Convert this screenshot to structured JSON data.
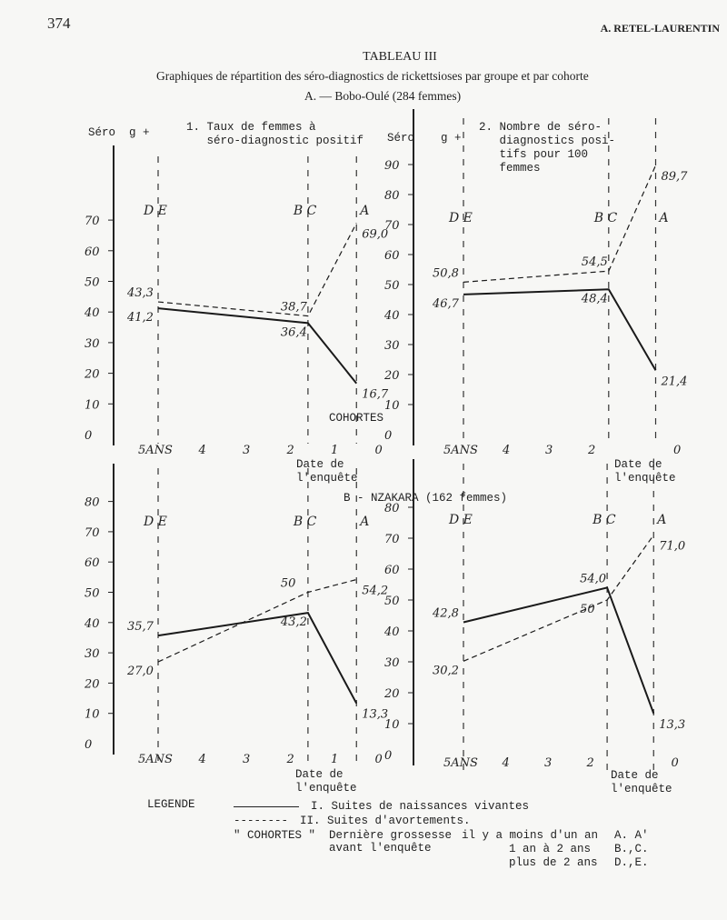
{
  "header": {
    "page_number": "374",
    "author": "A. RETEL-LAURENTIN"
  },
  "title": "TABLEAU III",
  "subtitle": "Graphiques de répartition des séro-diagnostics de rickettsioses par groupe et par cohorte",
  "section_a": "A. — Bobo-Oulé (284 femmes)",
  "section_b": "B - NZAKARA (162 femmes)",
  "y_heading_left": "Séro  g +",
  "y_heading_right_1": "Séro",
  "y_heading_right_2": "g +",
  "chart1_title": "1. Taux de femmes à\n   séro-diagnostic positif",
  "chart2_title": "2. Nombre de séro-\n   diagnostics posi-\n   tifs pour 100\n   femmes",
  "cohortes_label": "COHORTES",
  "date_label": "Date de\nl'enquête",
  "legend": {
    "title": "LEGENDE",
    "solid_label": "I. Suites de naissances vivantes",
    "dashed_sample": "--------",
    "dashed_label": "II. Suites d'avortements.",
    "cohortes": "\" COHORTES \"",
    "desc": "Dernière grossesse\navant l'enquête",
    "periods": [
      "il y a moins d'un an",
      "1 an à 2 ans",
      "plus de 2 ans"
    ],
    "codes": [
      "A. A'",
      "B.,C.",
      "D.,E."
    ]
  },
  "chart_data": [
    {
      "type": "line",
      "title": "Taux de femmes à séro-diagnostic positif (Bobo-Oulé)",
      "ylim": [
        0,
        70
      ],
      "yticks": [
        0,
        10,
        20,
        30,
        40,
        50,
        60,
        70
      ],
      "xticks": [
        "5ANS",
        "4",
        "3",
        "2",
        "1",
        "0"
      ],
      "xtick_values": [
        5,
        4,
        3,
        2,
        1,
        0
      ],
      "cohorts": [
        {
          "label": "D E",
          "x": 5
        },
        {
          "label": "B C",
          "x": 1.6
        },
        {
          "label": "A",
          "x": 0.5
        }
      ],
      "series": [
        {
          "name": "I. Suites de naissances vivantes",
          "style": "solid",
          "x": [
            5,
            1.6,
            0.5
          ],
          "values": [
            41.2,
            36.4,
            16.7
          ],
          "labels": [
            "41,2",
            "36,4",
            "16,7"
          ]
        },
        {
          "name": "II. Suites d'avortements",
          "style": "dashed",
          "x": [
            5,
            1.6,
            0.5
          ],
          "values": [
            43.3,
            38.7,
            69.0
          ],
          "labels": [
            "43,3",
            "38,7",
            "69,0"
          ]
        }
      ]
    },
    {
      "type": "line",
      "title": "Nombre de séro-diagnostics positifs pour 100 femmes (Bobo-Oulé)",
      "ylim": [
        0,
        90
      ],
      "yticks": [
        0,
        10,
        20,
        30,
        40,
        50,
        60,
        70,
        80,
        90
      ],
      "xticks": [
        "5ANS",
        "4",
        "3",
        "2",
        "0"
      ],
      "xtick_values": [
        5,
        4,
        3,
        2,
        0
      ],
      "cohorts": [
        {
          "label": "D E",
          "x": 5
        },
        {
          "label": "B C",
          "x": 1.6
        },
        {
          "label": "A",
          "x": 0.5
        }
      ],
      "series": [
        {
          "name": "I. Suites de naissances vivantes",
          "style": "solid",
          "x": [
            5,
            1.6,
            0.5
          ],
          "values": [
            46.7,
            48.4,
            21.4
          ],
          "labels": [
            "46,7",
            "48,4",
            "21,4"
          ]
        },
        {
          "name": "II. Suites d'avortements",
          "style": "dashed",
          "x": [
            5,
            1.6,
            0.5
          ],
          "values": [
            50.8,
            54.5,
            89.7
          ],
          "labels": [
            "50,8",
            "54,5",
            "89,7"
          ]
        }
      ]
    },
    {
      "type": "line",
      "title": "Taux de femmes à séro-diagnostic positif (Nzakara)",
      "ylim": [
        0,
        80
      ],
      "yticks": [
        0,
        10,
        20,
        30,
        40,
        50,
        60,
        70,
        80
      ],
      "xticks": [
        "5ANS",
        "4",
        "3",
        "2",
        "1",
        "0"
      ],
      "xtick_values": [
        5,
        4,
        3,
        2,
        1,
        0
      ],
      "cohorts": [
        {
          "label": "D E",
          "x": 5
        },
        {
          "label": "B C",
          "x": 1.6
        },
        {
          "label": "A",
          "x": 0.5
        }
      ],
      "series": [
        {
          "name": "I. Suites de naissances vivantes",
          "style": "solid",
          "x": [
            5,
            1.6,
            0.5
          ],
          "values": [
            35.7,
            43.2,
            13.3
          ],
          "labels": [
            "35,7",
            "43,2",
            "13,3"
          ]
        },
        {
          "name": "II. Suites d'avortements",
          "style": "dashed",
          "x": [
            5,
            1.6,
            0.5
          ],
          "values": [
            27.0,
            50,
            54.2
          ],
          "labels": [
            "27,0",
            "50",
            "54,2"
          ]
        }
      ]
    },
    {
      "type": "line",
      "title": "Nombre de séro-diagnostics positifs pour 100 femmes (Nzakara)",
      "ylim": [
        0,
        80
      ],
      "yticks": [
        0,
        10,
        20,
        30,
        40,
        50,
        60,
        70,
        80
      ],
      "xticks": [
        "5ANS",
        "4",
        "3",
        "2",
        "0"
      ],
      "xtick_values": [
        5,
        4,
        3,
        2,
        0
      ],
      "cohorts": [
        {
          "label": "D E",
          "x": 5
        },
        {
          "label": "B C",
          "x": 1.6
        },
        {
          "label": "A",
          "x": 0.5
        }
      ],
      "series": [
        {
          "name": "I. Suites de naissances vivantes",
          "style": "solid",
          "x": [
            5,
            1.6,
            0.5
          ],
          "values": [
            42.8,
            54.0,
            13.3
          ],
          "labels": [
            "42,8",
            "54,0",
            "13,3"
          ]
        },
        {
          "name": "II. Suites d'avortements",
          "style": "dashed",
          "x": [
            5,
            1.6,
            0.5
          ],
          "values": [
            30.2,
            50,
            71.0
          ],
          "labels": [
            "30,2",
            "50",
            "71,0"
          ]
        }
      ]
    }
  ]
}
